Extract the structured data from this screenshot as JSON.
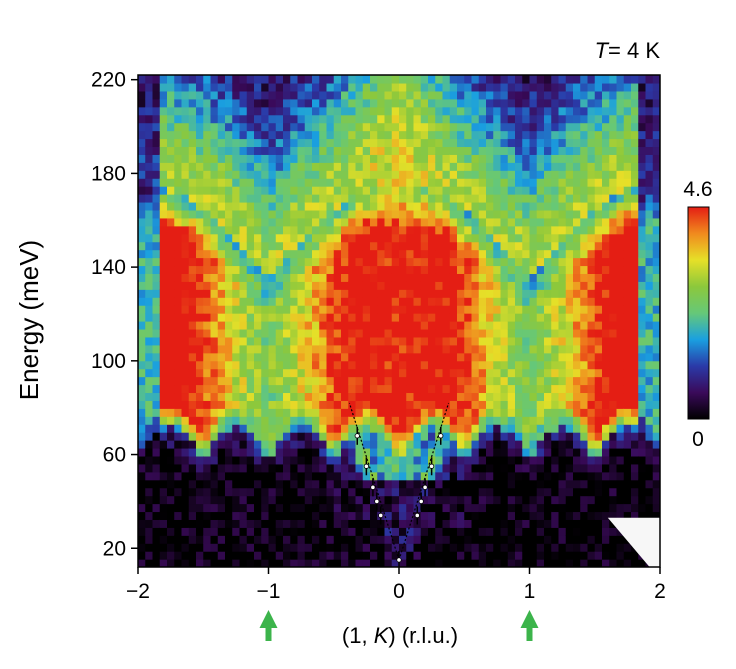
{
  "chart_data": {
    "type": "heatmap",
    "annotation": {
      "italic": "T",
      "rest": "= 4 K"
    },
    "xlabel": {
      "prefix": "(1, ",
      "italic": "K",
      "suffix": ") (r.l.u.)"
    },
    "ylabel": "Energy (meV)",
    "xlim": [
      -2,
      2
    ],
    "ylim": [
      12,
      222
    ],
    "x_ticks": [
      -2,
      -1,
      0,
      1,
      2
    ],
    "x_tick_labels": [
      "−2",
      "−1",
      "0",
      "1",
      "2"
    ],
    "y_ticks": [
      20,
      60,
      100,
      140,
      180,
      220
    ],
    "y_tick_labels": [
      "20",
      "60",
      "100",
      "140",
      "180",
      "220"
    ],
    "colorbar": {
      "min_label": "0",
      "max_label": "4.6",
      "min": 0,
      "max": 4.6
    },
    "colormap": [
      "#000000",
      "#3a0a5a",
      "#2a3aa8",
      "#1aa0e0",
      "#66c878",
      "#8cc83c",
      "#e6e028",
      "#f08a1e",
      "#e41e14"
    ],
    "arrow_color": "#3cb44b",
    "arrow_markers_x": [
      -1,
      1
    ],
    "dispersion_points": [
      {
        "k": 0.0,
        "e": 15
      },
      {
        "k": -0.14,
        "e": 34
      },
      {
        "k": -0.17,
        "e": 40
      },
      {
        "k": -0.2,
        "e": 46
      },
      {
        "k": -0.25,
        "e": 55
      },
      {
        "k": -0.32,
        "e": 68
      },
      {
        "k": 0.14,
        "e": 34
      },
      {
        "k": 0.17,
        "e": 40
      },
      {
        "k": 0.2,
        "e": 46
      },
      {
        "k": 0.25,
        "e": 55
      },
      {
        "k": 0.32,
        "e": 68
      }
    ]
  }
}
